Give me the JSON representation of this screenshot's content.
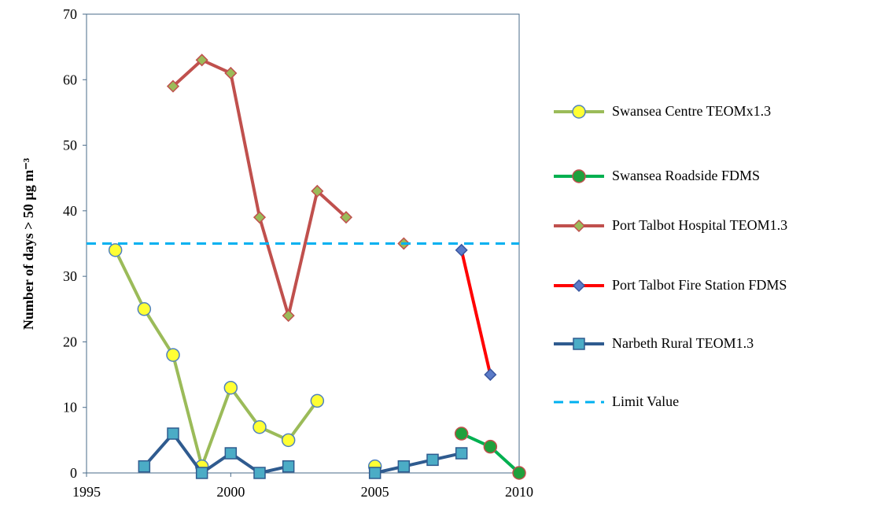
{
  "chart_data": {
    "type": "line",
    "ylabel": "Number of days > 50 µg m⁻³",
    "x": [
      1995,
      1996,
      1997,
      1998,
      1999,
      2000,
      2001,
      2002,
      2003,
      2004,
      2005,
      2006,
      2007,
      2008,
      2009,
      2010
    ],
    "xlim": [
      1995,
      2010
    ],
    "xticks": [
      1995,
      2000,
      2005,
      2010
    ],
    "ylim": [
      0,
      70
    ],
    "yticks": [
      0,
      10,
      20,
      30,
      40,
      50,
      60,
      70
    ],
    "grid": false,
    "legend": "right",
    "series": [
      {
        "name": "Swansea Centre TEOMx1.3",
        "color": "#9bbb59",
        "marker": "circle",
        "marker_fill": "#ffff33",
        "marker_stroke": "#4f81bd",
        "values": [
          null,
          34,
          25,
          18,
          1,
          13,
          7,
          5,
          11,
          null,
          1,
          null,
          null,
          null,
          null,
          null
        ]
      },
      {
        "name": "Swansea Roadside FDMS",
        "color": "#00b050",
        "marker": "circle",
        "marker_fill": "#1fa03c",
        "marker_stroke": "#c0504d",
        "values": [
          null,
          null,
          null,
          null,
          null,
          null,
          null,
          null,
          null,
          null,
          null,
          null,
          null,
          6,
          4,
          0
        ]
      },
      {
        "name": "Port Talbot Hospital TEOM1.3",
        "color": "#c0504d",
        "marker": "diamond",
        "marker_fill": "#9bbb59",
        "marker_stroke": "#c0504d",
        "values": [
          null,
          null,
          null,
          59,
          63,
          61,
          39,
          24,
          43,
          39,
          null,
          35,
          null,
          null,
          null,
          null
        ]
      },
      {
        "name": "Port Talbot Fire Station FDMS",
        "color": "#ff0000",
        "marker": "diamond",
        "marker_fill": "#5b7bc8",
        "marker_stroke": "#3a57a0",
        "values": [
          null,
          null,
          null,
          null,
          null,
          null,
          null,
          null,
          null,
          null,
          null,
          null,
          null,
          34,
          15,
          null
        ]
      },
      {
        "name": "Narbeth Rural TEOM1.3",
        "color": "#2f5b8f",
        "marker": "square",
        "marker_fill": "#4bacc6",
        "marker_stroke": "#2f5b8f",
        "values": [
          null,
          null,
          1,
          6,
          0,
          3,
          0,
          1,
          null,
          null,
          0,
          1,
          2,
          3,
          null,
          null
        ]
      },
      {
        "name": "Limit Value",
        "color": "#00b0f0",
        "dashed": true,
        "values": [
          35,
          35,
          35,
          35,
          35,
          35,
          35,
          35,
          35,
          35,
          35,
          35,
          35,
          35,
          35,
          35
        ]
      }
    ]
  }
}
